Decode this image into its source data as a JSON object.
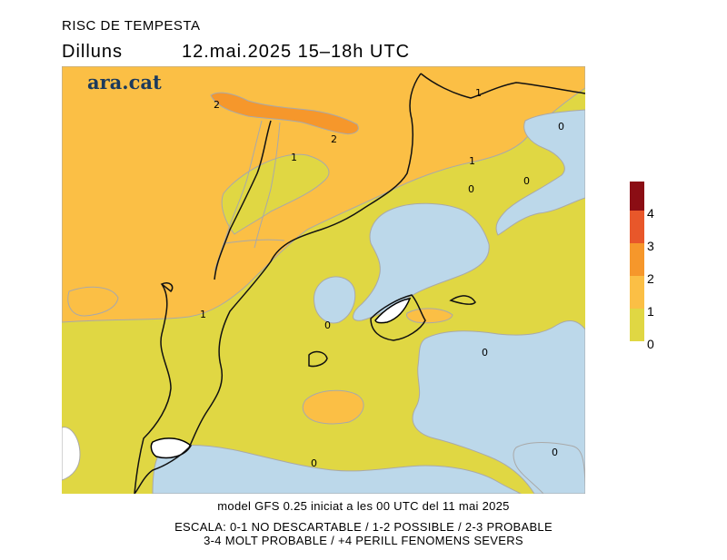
{
  "header": {
    "title": "RISC DE TEMPESTA",
    "day": "Dilluns",
    "datetime": "12.mai.2025  15–18h  UTC"
  },
  "map": {
    "logo": "ara.cat",
    "contour_labels": [
      "2",
      "2",
      "1",
      "1",
      "1",
      "0",
      "0",
      "0",
      "1",
      "0",
      "0",
      "0",
      "0"
    ]
  },
  "legend": {
    "colors": [
      "#8b0d14",
      "#e8572a",
      "#f6972b",
      "#fbbf45",
      "#e0d743"
    ],
    "ticks": [
      "4",
      "3",
      "2",
      "1",
      "0"
    ],
    "ocean_color": "#bcd8ea"
  },
  "footer": {
    "line1": "model GFS 0.25 iniciat a les 00 UTC del 11 mai 2025",
    "line2": "ESCALA: 0-1 NO DESCARTABLE / 1-2 POSSIBLE / 2-3 PROBABLE",
    "line3": "3-4 MOLT PROBABLE / +4 PERILL FENOMENS SEVERS"
  }
}
